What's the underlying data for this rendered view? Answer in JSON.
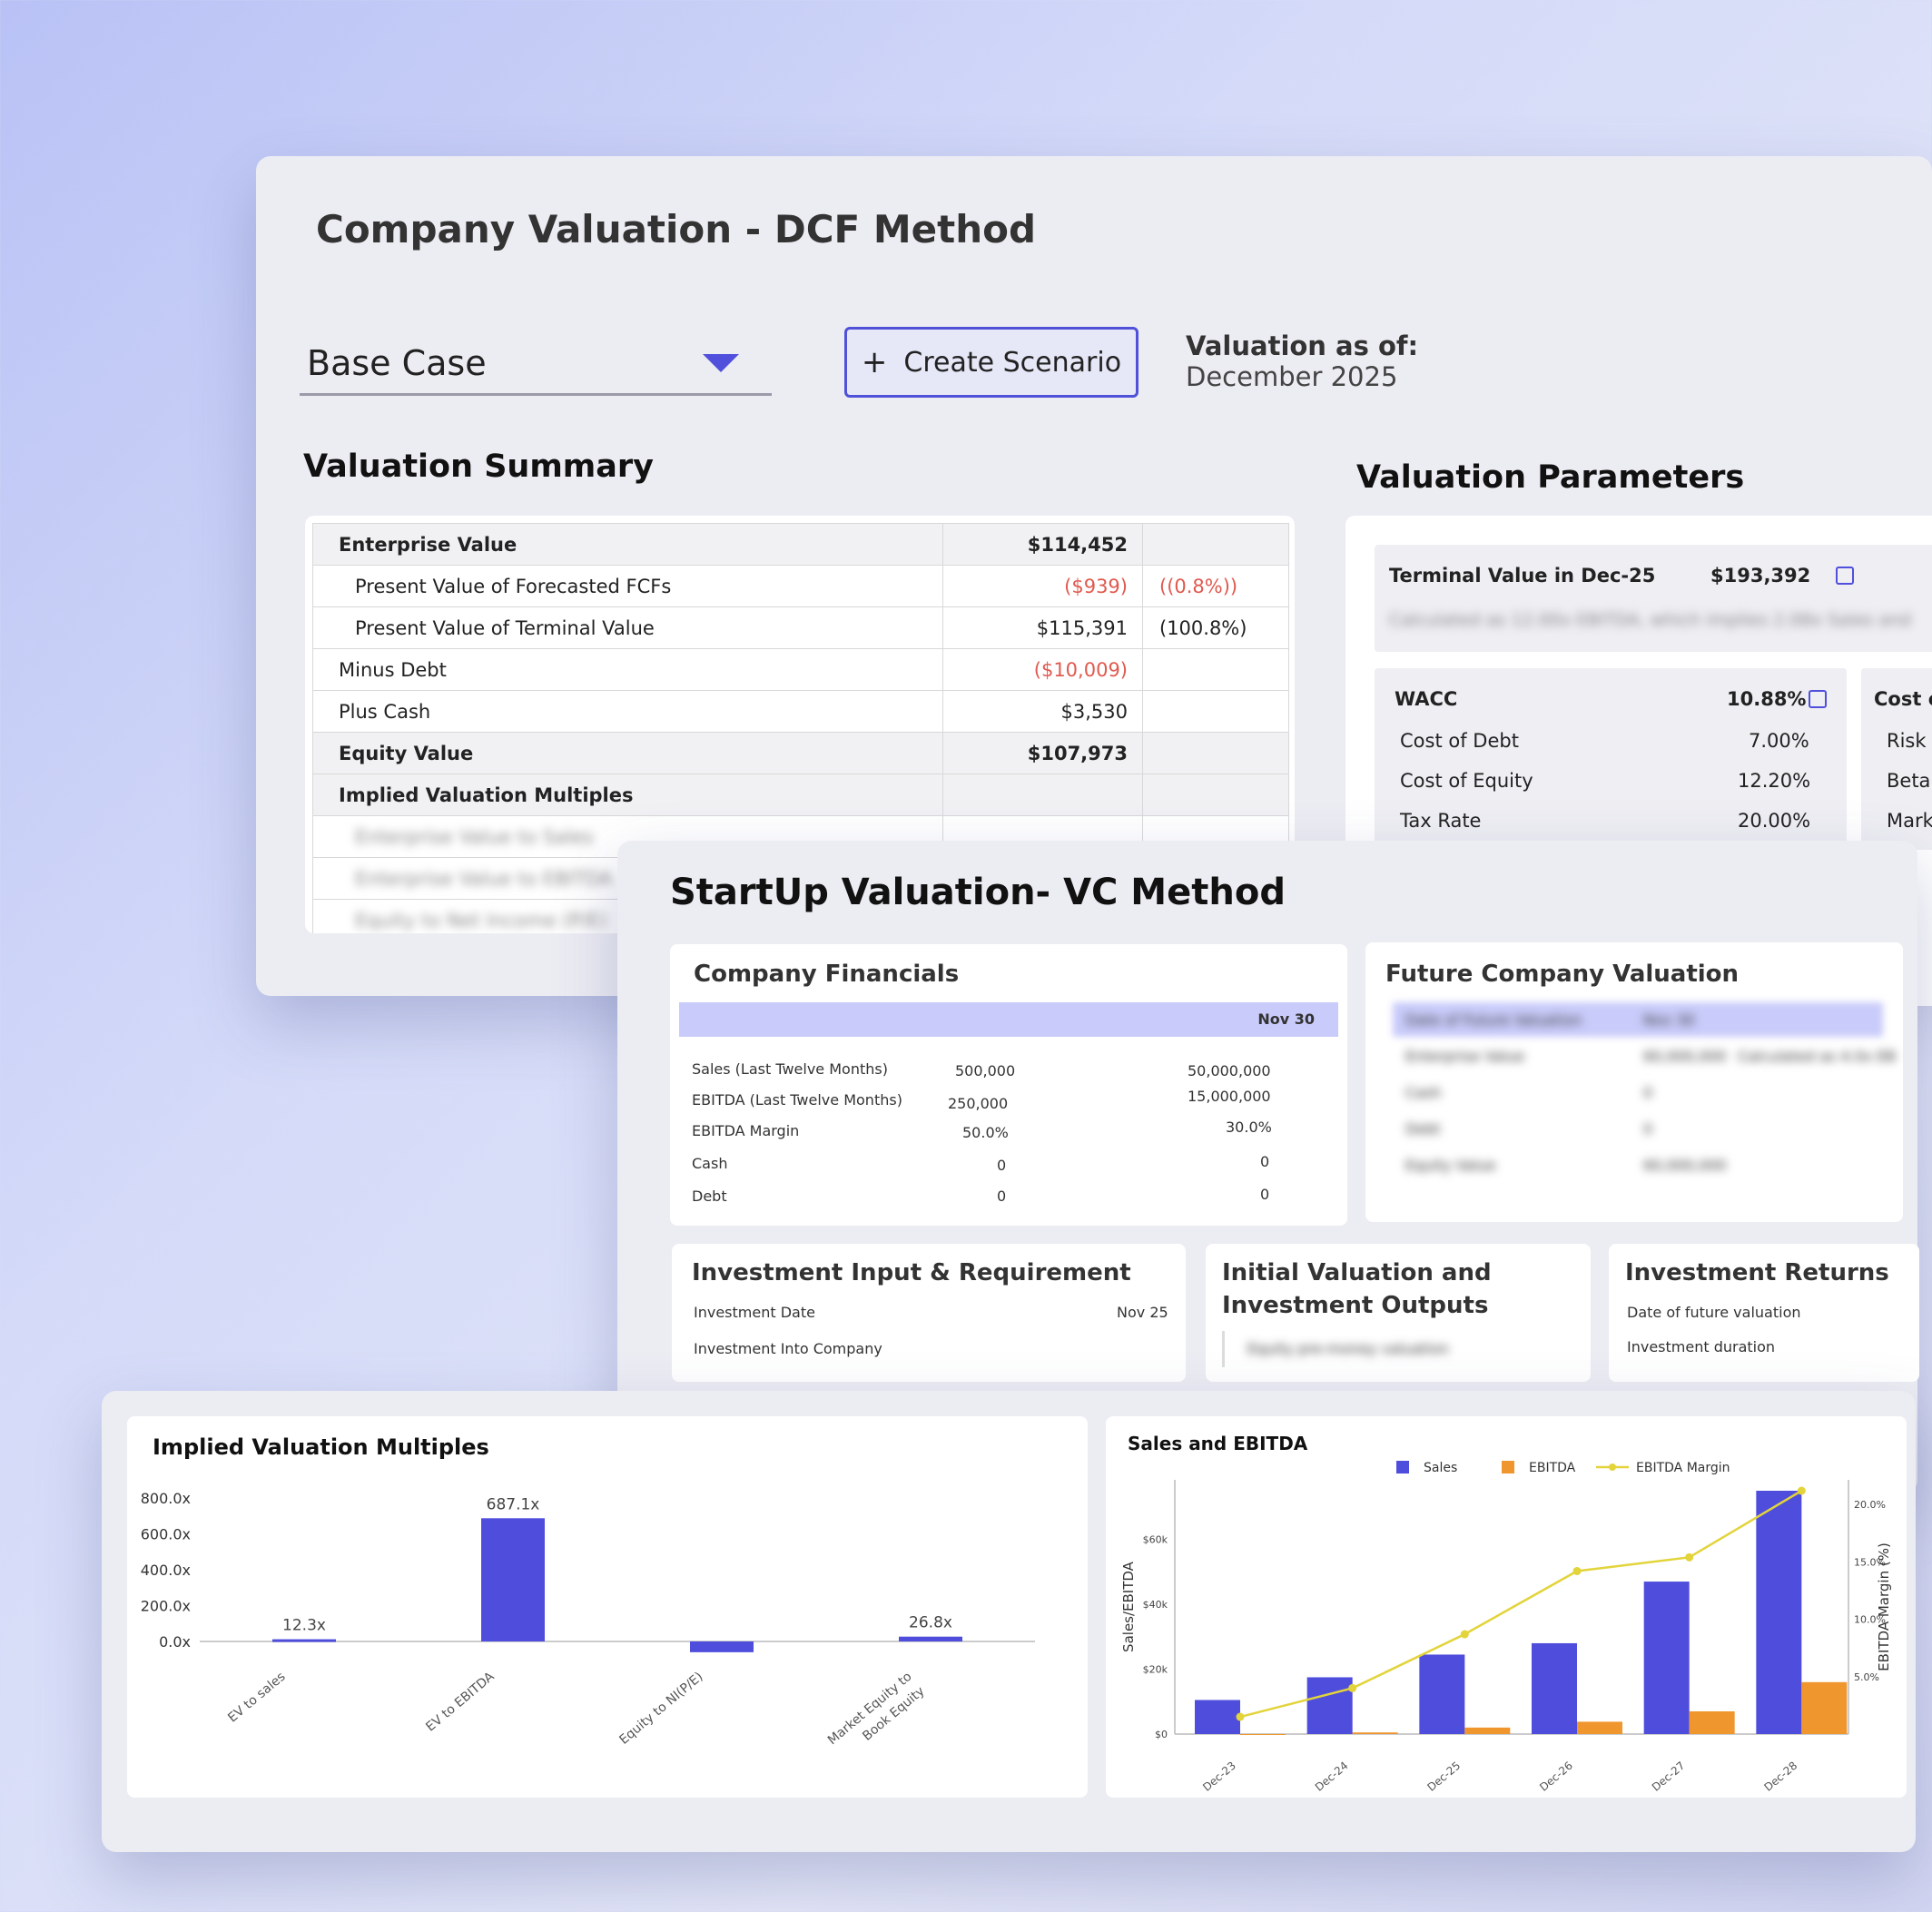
{
  "dcf": {
    "title": "Company Valuation - DCF Method",
    "scenario": "Base Case",
    "create_scenario": "Create Scenario",
    "valuation_as_of_label": "Valuation as of:",
    "valuation_date": "December 2025",
    "summary_title": "Valuation Summary",
    "params_title": "Valuation Parameters",
    "summary_rows": [
      {
        "label": "Enterprise Value",
        "value": "$114,452",
        "pct": ""
      },
      {
        "label": "Present Value of Forecasted FCFs",
        "value": "($939)",
        "pct": "((0.8%))"
      },
      {
        "label": "Present Value of Terminal Value",
        "value": "$115,391",
        "pct": "(100.8%)"
      },
      {
        "label": "Minus Debt",
        "value": "($10,009)",
        "pct": ""
      },
      {
        "label": "Plus Cash",
        "value": "$3,530",
        "pct": ""
      },
      {
        "label": "Equity Value",
        "value": "$107,973",
        "pct": ""
      },
      {
        "label": "Implied Valuation Multiples",
        "value": "",
        "pct": ""
      }
    ],
    "blurred_rows": [
      "Enterprise Value to Sales",
      "Enterprise Value to EBITDA",
      "Equity to Net Income (P/E)"
    ],
    "terminal_value_label": "Terminal Value in Dec-25",
    "terminal_value": "$193,392",
    "terminal_note": "Calculated as 12.00x EBITDA, which implies 2.08x Sales and",
    "wacc_label": "WACC",
    "wacc": "10.88%",
    "wacc_rows": [
      {
        "label": "Cost of Debt",
        "value": "7.00%"
      },
      {
        "label": "Cost of Equity",
        "value": "12.20%"
      },
      {
        "label": "Tax Rate",
        "value": "20.00%"
      }
    ],
    "cost_title": "Cost o",
    "cost_rows": [
      "Risk",
      "Beta",
      "Mark"
    ]
  },
  "vc": {
    "title": "StartUp Valuation- VC Method",
    "financials_title": "Company Financials",
    "column": "Nov 30",
    "rows": [
      {
        "label": "Sales (Last Twelve Months)",
        "v1": "500,000",
        "v2": "50,000,000",
        "neg": false
      },
      {
        "label": "EBITDA  (Last Twelve Months)",
        "v1": "250,000",
        "v2": "15,000,000",
        "neg": true
      },
      {
        "label": "EBITDA  Margin",
        "v1": "50.0%",
        "v2": "30.0%",
        "neg": true
      },
      {
        "label": "Cash",
        "v1": "0",
        "v2": "0",
        "neg": false
      },
      {
        "label": "Debt",
        "v1": "0",
        "v2": "0",
        "neg": false
      }
    ],
    "future_title": "Future Company Valuation",
    "future_blurred": [
      "Date of Future Valuation",
      "Nov 30",
      "Enterprise Value",
      "60,000,000",
      "Calculated as 4.0x EB",
      "Cash",
      "0",
      "Debt",
      "0",
      "Equity Value",
      "60,000,000"
    ],
    "inv_title": "Investment Input & Requirement",
    "inv_rows": [
      {
        "label": "Investment Date",
        "value": "Nov 25"
      },
      {
        "label": "Investment Into Company",
        "value": ""
      }
    ],
    "init_title_1": "Initial Valuation and",
    "init_title_2": "Investment Outputs",
    "init_blurred": "Equity pre-money valuation",
    "ret_title": "Investment Returns",
    "ret_rows": [
      "Date of future valuation",
      "Investment duration"
    ]
  },
  "charts": {
    "mult_title": "Implied Valuation Multiples",
    "sales_title": "Sales and EBITDA"
  },
  "chart_data": [
    {
      "type": "bar",
      "title": "Implied Valuation Multiples",
      "categories": [
        "EV to sales",
        "EV to EBITDA",
        "Equity to NI(P/E)",
        "Market Equity to Book Equity"
      ],
      "values": [
        12.3,
        687.1,
        -60,
        26.8
      ],
      "data_labels": [
        "12.3x",
        "687.1x",
        "",
        "26.8x"
      ],
      "yticks": [
        "800.0x",
        "600.0x",
        "400.0x",
        "200.0x",
        "0.0x"
      ],
      "ylim": [
        -80,
        800
      ],
      "color": "#4f4ddc"
    },
    {
      "type": "bar",
      "title": "Sales and EBITDA",
      "categories": [
        "Dec-23",
        "Dec-24",
        "Dec-25",
        "Dec-26",
        "Dec-27",
        "Dec-28"
      ],
      "series": [
        {
          "name": "Sales",
          "values": [
            10500,
            17500,
            24500,
            28000,
            47000,
            75000
          ],
          "color": "#4f4ddc"
        },
        {
          "name": "EBITDA",
          "values": [
            0,
            500,
            2000,
            3800,
            7000,
            16000
          ],
          "color": "#f0962e"
        },
        {
          "name": "EBITDA Margin",
          "type": "line",
          "axis": "right",
          "values": [
            1.5,
            4,
            8.7,
            14.2,
            15.4,
            21.2
          ],
          "color": "#e2d43a"
        }
      ],
      "ylabel": "Sales/EBITDA",
      "y2label": "EBITDA Margin (%)",
      "yticks": [
        "$0",
        "$20k",
        "$40k",
        "$60k"
      ],
      "y2ticks": [
        "5.0%",
        "10.0%",
        "15.0%",
        "20.0%"
      ],
      "ylim": [
        0,
        75000
      ],
      "y2lim": [
        0,
        21.2
      ]
    }
  ]
}
